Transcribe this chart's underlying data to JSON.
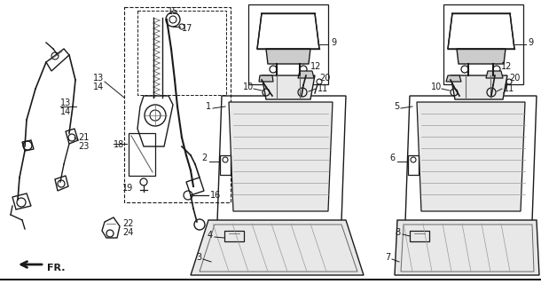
{
  "bg_color": "#ffffff",
  "line_color": "#1a1a1a",
  "fig_width": 6.1,
  "fig_height": 3.2,
  "dpi": 100,
  "gray": "#666666",
  "lgray": "#999999",
  "dgray": "#444444"
}
